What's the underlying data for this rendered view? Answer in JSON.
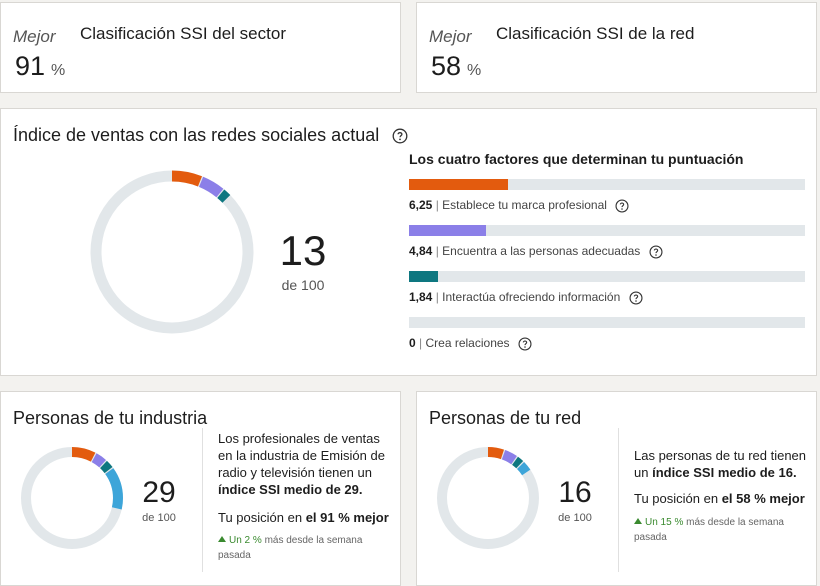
{
  "sector_card": {
    "qualifier": "Mejor",
    "title": "Clasificación SSI del sector",
    "value": "91",
    "unit": "%"
  },
  "network_card": {
    "qualifier": "Mejor",
    "title": "Clasificación SSI de la red",
    "value": "58",
    "unit": "%"
  },
  "main": {
    "title": "Índice de ventas con las redes sociales actual",
    "help_icon": "question-circle-icon",
    "score": "13",
    "score_of": "de 100",
    "factors_title": "Los cuatro factores que determinan tu puntuación",
    "factors": [
      {
        "value": "6,25",
        "label": "Establece tu marca profesional",
        "fraction": 0.25,
        "color": "#e35b0e"
      },
      {
        "value": "4,84",
        "label": "Encuentra a las personas adecuadas",
        "fraction": 0.1936,
        "color": "#8b7fe8"
      },
      {
        "value": "1,84",
        "label": "Interactúa ofreciendo información",
        "fraction": 0.0736,
        "color": "#0e7780"
      },
      {
        "value": "0",
        "label": "Crea relaciones",
        "fraction": 0,
        "color": "#3da5d9"
      }
    ],
    "ring_segments": [
      6.25,
      4.84,
      1.84,
      0
    ]
  },
  "industry": {
    "title": "Personas de tu industria",
    "score": "29",
    "score_of": "de 100",
    "ring_segments": [
      8.0,
      4.0,
      3.0,
      14.0
    ],
    "desc_pre": "Los profesionales de ventas en la industria de Emisión de radio y televisión tienen un ",
    "desc_bold": "índice SSI medio de 29.",
    "position_pre": "Tu posición en ",
    "position_bold": "el 91 % mejor",
    "trend_up": "Un 2 %",
    "trend_rest": " más desde la semana pasada"
  },
  "network": {
    "title": "Personas de tu red",
    "score": "16",
    "score_of": "de 100",
    "ring_segments": [
      5.5,
      4.5,
      2.5,
      3.5
    ],
    "desc_pre": "Las personas de tu red tienen un ",
    "desc_bold": "índice SSI medio de 16.",
    "position_pre": "Tu posición en ",
    "position_bold": "el 58 % mejor",
    "trend_up": "Un 15 %",
    "trend_rest": " más desde la semana pasada"
  },
  "colors": {
    "track": "#e2e7ea",
    "brand": "#e35b0e",
    "purple": "#8b7fe8",
    "teal": "#0e7780",
    "blue": "#3da5d9"
  }
}
